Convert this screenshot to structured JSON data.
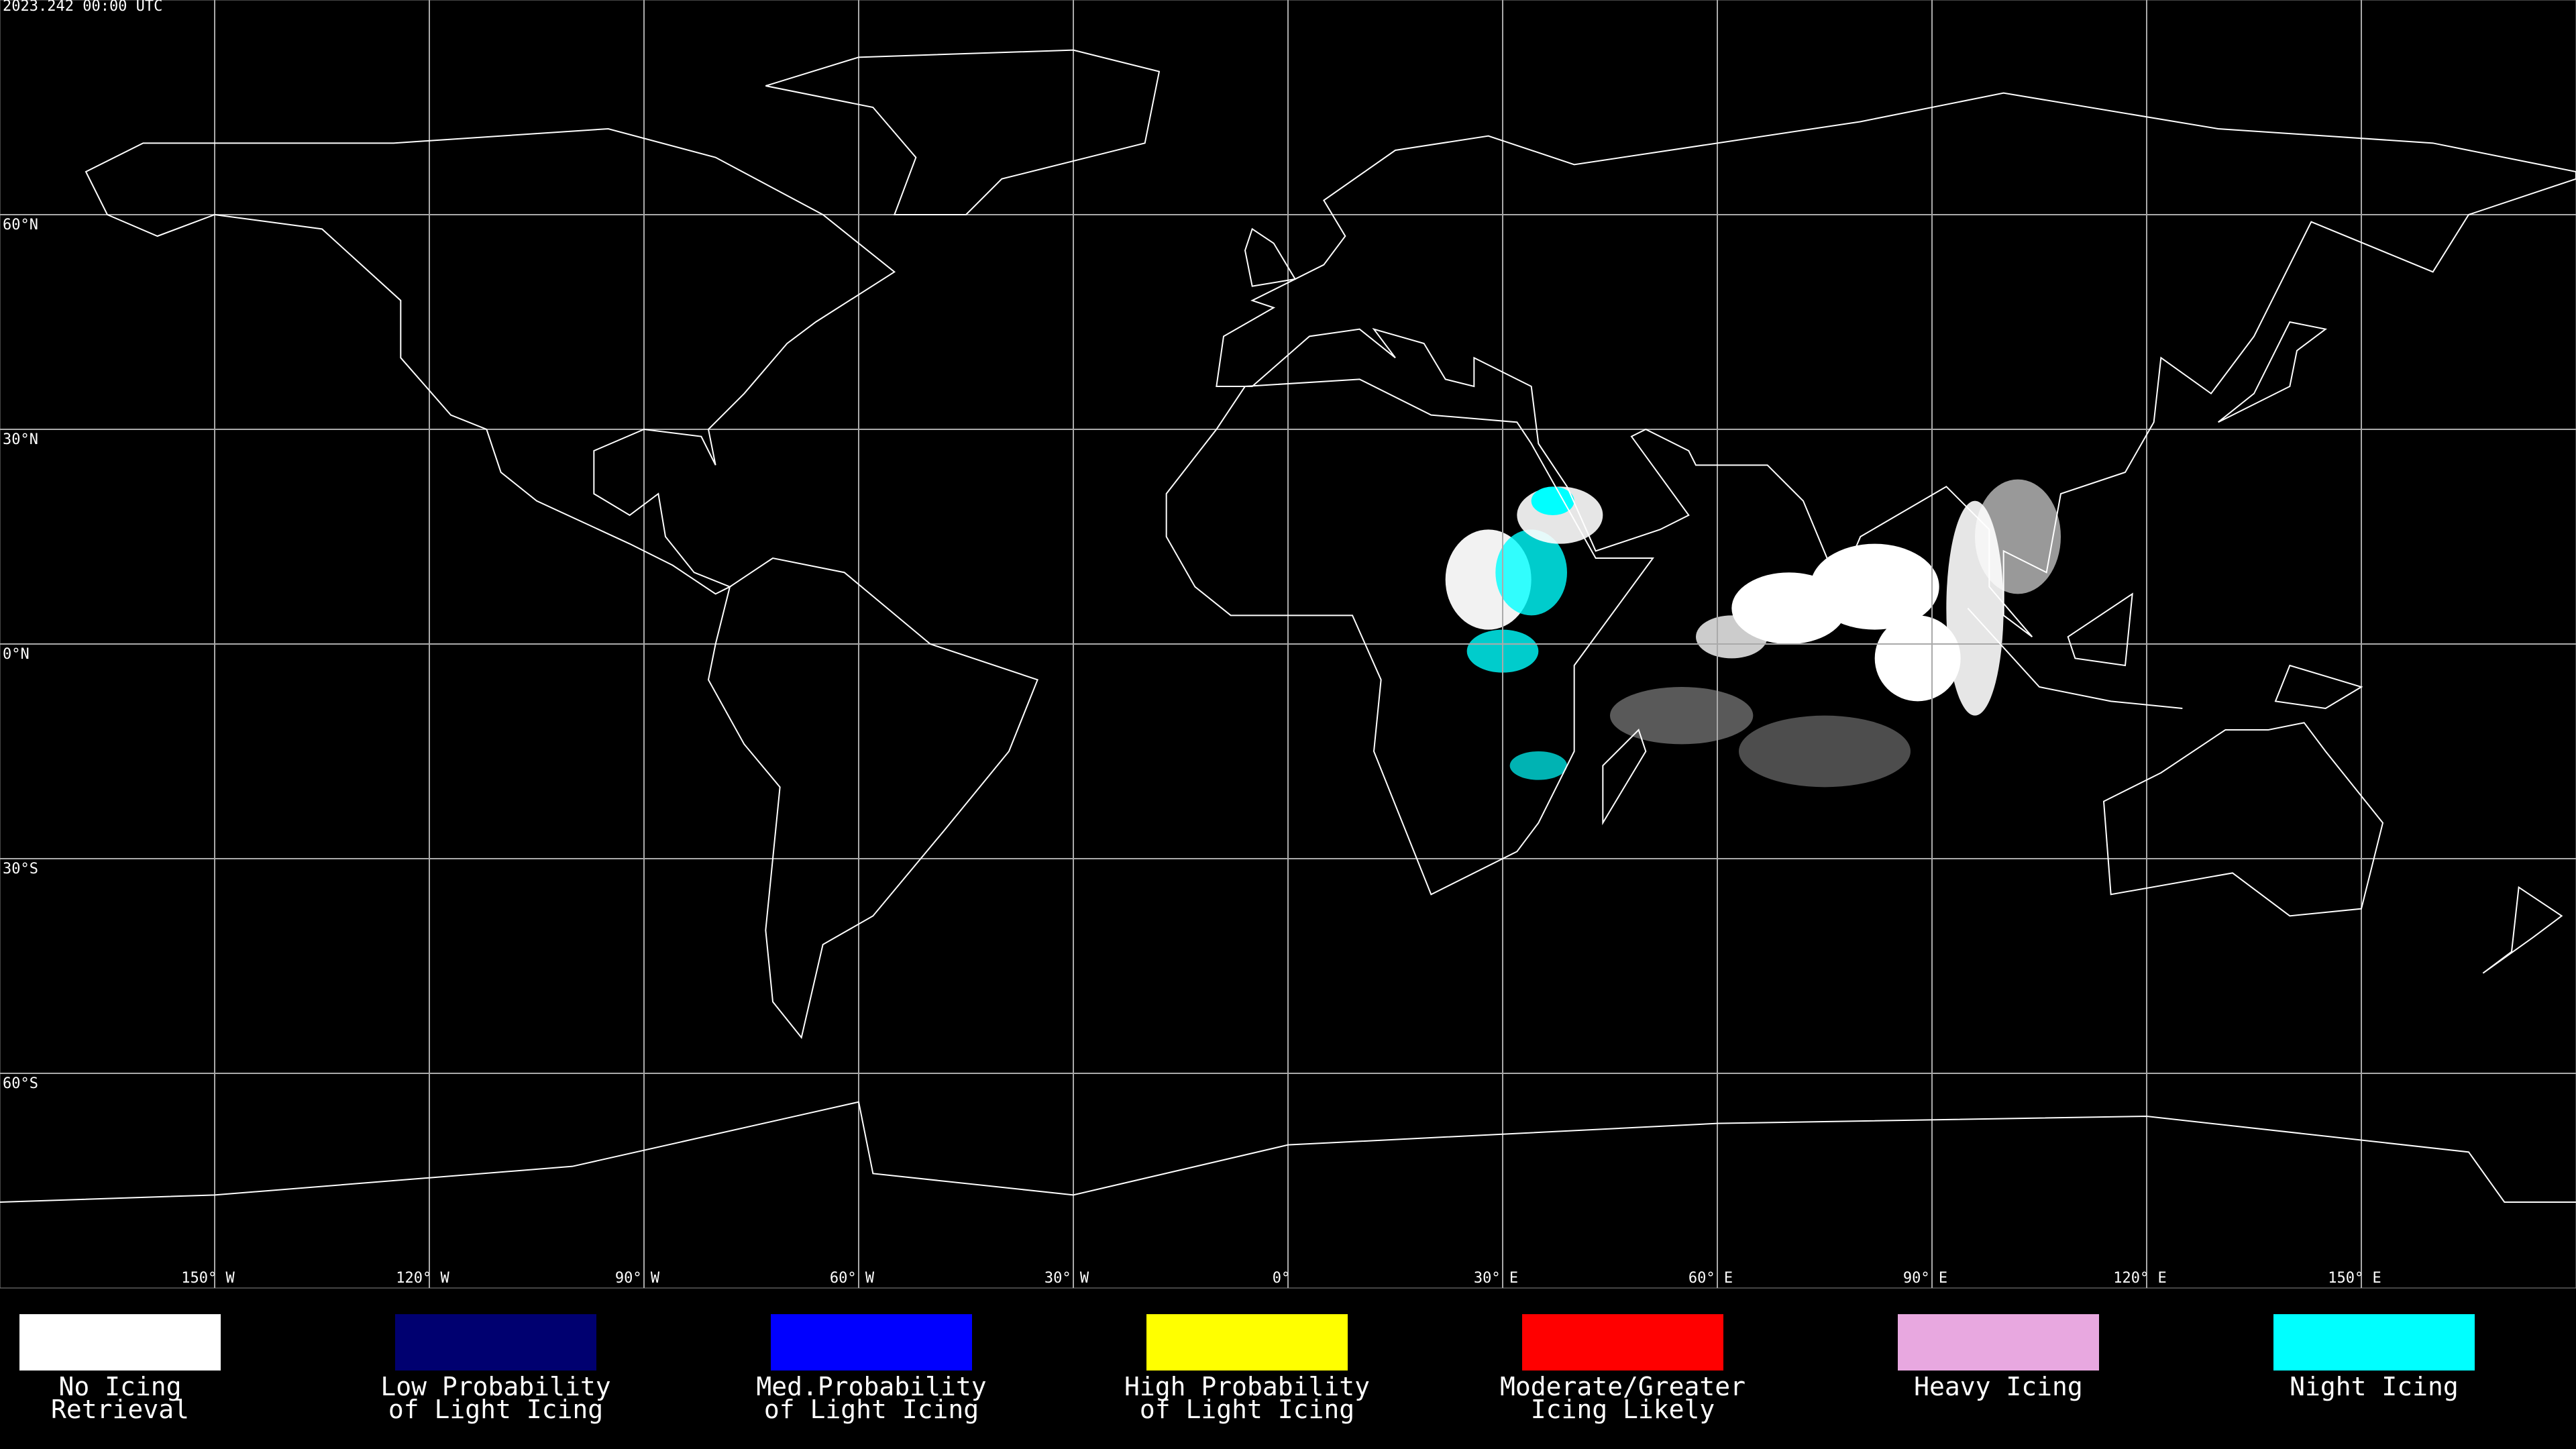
{
  "header": {
    "timestamp": "2023.242 00:00 UTC"
  },
  "map": {
    "lat_ticks": [
      {
        "value": 60,
        "label": "60°N"
      },
      {
        "value": 30,
        "label": "30°N"
      },
      {
        "value": 0,
        "label": "0°N"
      },
      {
        "value": -30,
        "label": "30°S"
      },
      {
        "value": -60,
        "label": "60°S"
      }
    ],
    "lon_ticks": [
      {
        "value": -150,
        "label": "150° W"
      },
      {
        "value": -120,
        "label": "120° W"
      },
      {
        "value": -90,
        "label": "90° W"
      },
      {
        "value": -60,
        "label": "60° W"
      },
      {
        "value": -30,
        "label": "30° W"
      },
      {
        "value": 0,
        "label": "0°"
      },
      {
        "value": 30,
        "label": "30° E"
      },
      {
        "value": 60,
        "label": "60° E"
      },
      {
        "value": 90,
        "label": "90° E"
      },
      {
        "value": 120,
        "label": "120° E"
      },
      {
        "value": 150,
        "label": "150° E"
      }
    ]
  },
  "legend": [
    {
      "label": [
        "No Icing",
        "Retrieval"
      ],
      "color": "#ffffff"
    },
    {
      "label": [
        "Low Probability",
        "of Light Icing"
      ],
      "color": "#000070"
    },
    {
      "label": [
        "Med.Probability",
        "of Light Icing"
      ],
      "color": "#0000ff"
    },
    {
      "label": [
        "High Probability",
        "of Light Icing"
      ],
      "color": "#ffff00"
    },
    {
      "label": [
        "Moderate/Greater",
        "Icing Likely"
      ],
      "color": "#ff0000"
    },
    {
      "label": [
        "Heavy Icing"
      ],
      "color": "#e8a8e0"
    },
    {
      "label": [
        "Night Icing"
      ],
      "color": "#00ffff"
    }
  ]
}
